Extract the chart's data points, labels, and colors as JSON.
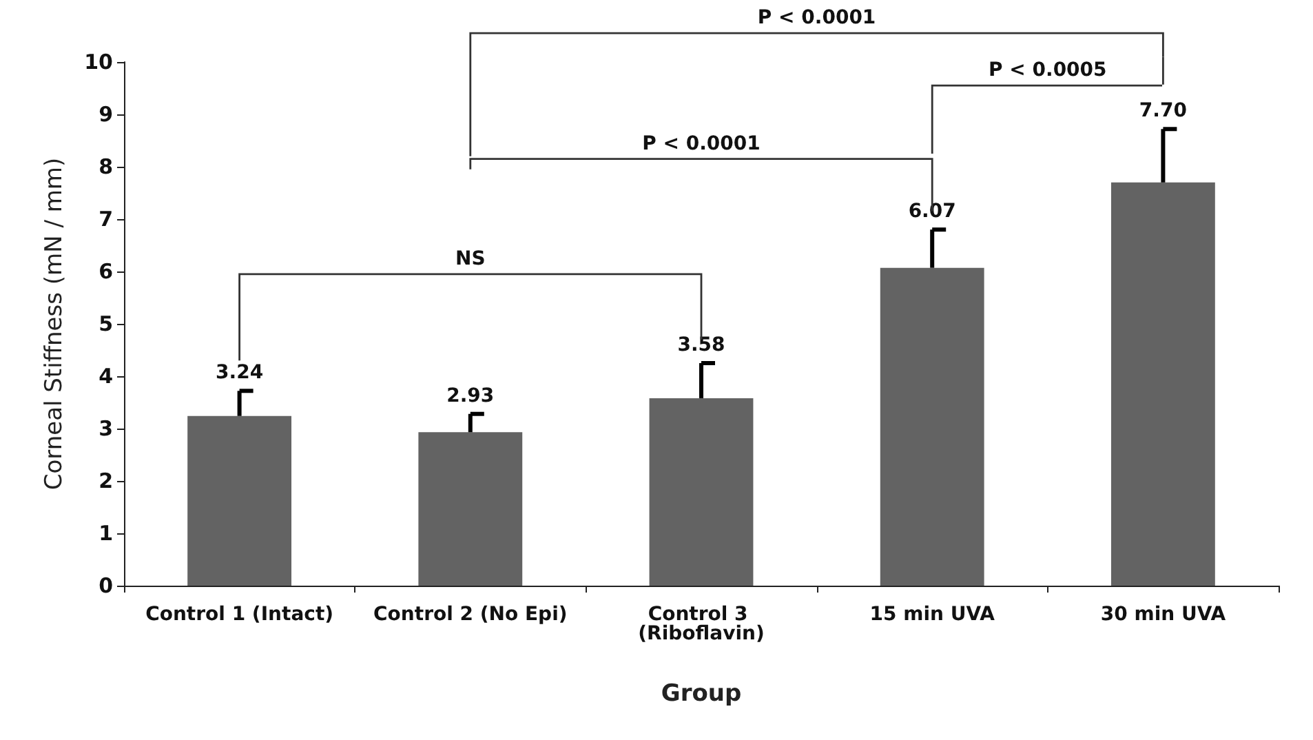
{
  "chart_data": {
    "type": "bar",
    "xlabel": "Group",
    "ylabel": "Corneal Stiffness (mN / mm)",
    "categories": [
      "Control 1 (Intact)",
      "Control 2 (No Epi)",
      "Control 3 (Riboflavin)",
      "15 min UVA",
      "30 min UVA"
    ],
    "series": [
      {
        "color": "#636363",
        "values": [
          3.24,
          2.93,
          3.58,
          6.07,
          7.7
        ],
        "errors": [
          [
            3.24,
            3.72
          ],
          [
            2.93,
            3.28
          ],
          [
            3.58,
            4.25
          ],
          [
            6.07,
            6.8
          ],
          [
            7.7,
            8.72
          ]
        ],
        "value_labels": [
          "3.24",
          "2.93",
          "3.58",
          "6.07",
          "7.70"
        ]
      }
    ],
    "ylim": [
      0,
      10
    ],
    "yticks": [
      0,
      1,
      2,
      3,
      4,
      5,
      6,
      7,
      8,
      9,
      10
    ],
    "grid": false,
    "annotations": [
      "NS",
      "P < 0.0001",
      "P < 0.0005",
      "P < 0.0001"
    ]
  }
}
